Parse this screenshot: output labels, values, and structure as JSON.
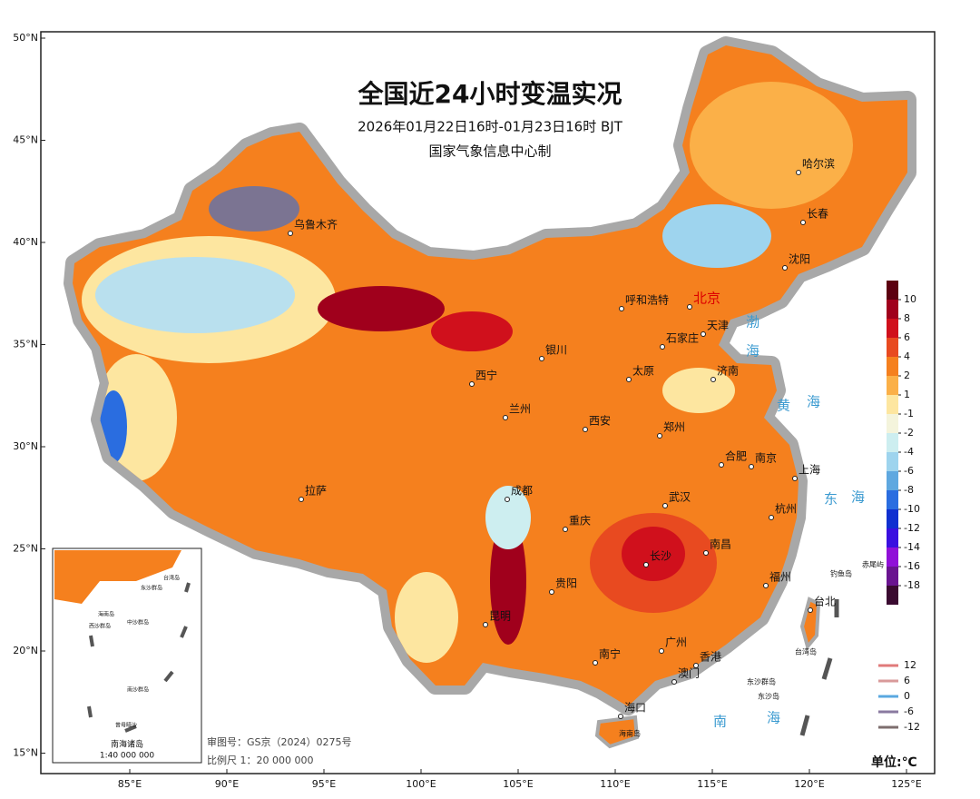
{
  "header": {
    "title": "全国近24小时变温实况",
    "subtitle": "2026年01月22日16时-01月23日16时 BJT",
    "producer": "国家气象信息中心制"
  },
  "map": {
    "lat_ticks": [
      {
        "value": 50,
        "label": "50°N"
      },
      {
        "value": 45,
        "label": "45°N"
      },
      {
        "value": 40,
        "label": "40°N"
      },
      {
        "value": 35,
        "label": "35°N"
      },
      {
        "value": 30,
        "label": "30°N"
      },
      {
        "value": 25,
        "label": "25°N"
      },
      {
        "value": 20,
        "label": "20°N"
      },
      {
        "value": 15,
        "label": "15°N"
      }
    ],
    "lon_ticks": [
      {
        "value": 85,
        "label": "85°E"
      },
      {
        "value": 90,
        "label": "90°E"
      },
      {
        "value": 95,
        "label": "95°E"
      },
      {
        "value": 100,
        "label": "100°E"
      },
      {
        "value": 105,
        "label": "105°E"
      },
      {
        "value": 110,
        "label": "110°E"
      },
      {
        "value": 115,
        "label": "115°E"
      },
      {
        "value": 120,
        "label": "120°E"
      },
      {
        "value": 125,
        "label": "125°E"
      }
    ],
    "cities": [
      "乌鲁木齐",
      "哈尔滨",
      "长春",
      "沈阳",
      "呼和浩特",
      "北京",
      "天津",
      "石家庄",
      "银川",
      "太原",
      "济南",
      "西宁",
      "兰州",
      "西安",
      "郑州",
      "合肥",
      "南京",
      "上海",
      "成都",
      "拉萨",
      "武汉",
      "杭州",
      "重庆",
      "长沙",
      "南昌",
      "福州",
      "贵阳",
      "台北",
      "昆明",
      "南宁",
      "广州",
      "香港",
      "澳门",
      "海口"
    ],
    "islands": [
      "钓鱼岛",
      "赤尾屿",
      "台湾岛",
      "东沙群岛",
      "东沙岛",
      "海南岛"
    ],
    "seas": [
      "渤",
      "海",
      "黄",
      "海",
      "东",
      "海",
      "南",
      "海"
    ],
    "inset": {
      "title": "南海诸岛",
      "scale": "1:40 000 000",
      "labels": [
        "台湾岛",
        "东沙群岛",
        "海南岛",
        "西沙群岛",
        "中沙群岛",
        "南沙群岛",
        "曾母暗沙"
      ]
    }
  },
  "colorbar": {
    "colors": [
      "#5c0010",
      "#a0001c",
      "#d0101c",
      "#e84a20",
      "#f5801e",
      "#fbb048",
      "#fde6a0",
      "#f4f4dc",
      "#cdeef0",
      "#9ed4ee",
      "#5fa8e0",
      "#2a6de0",
      "#1030d0",
      "#3a10e0",
      "#9010d8",
      "#6a1490",
      "#3a0a30"
    ],
    "ticks": [
      10,
      8,
      6,
      4,
      2,
      1,
      -1,
      -2,
      -4,
      -6,
      -8,
      -10,
      -12,
      -14,
      -16,
      -18
    ]
  },
  "contour_legend": {
    "colors": [
      "#e07a7a",
      "#d99a9a",
      "#5aa8e0",
      "#8a7aa0",
      "#7d6e6e"
    ],
    "ticks": [
      12,
      6,
      0,
      -6,
      -12
    ]
  },
  "footer": {
    "review_no": "审图号：GS京（2024）0275号",
    "scale": "比例尺 1：20 000 000",
    "unit": "单位:℃"
  }
}
